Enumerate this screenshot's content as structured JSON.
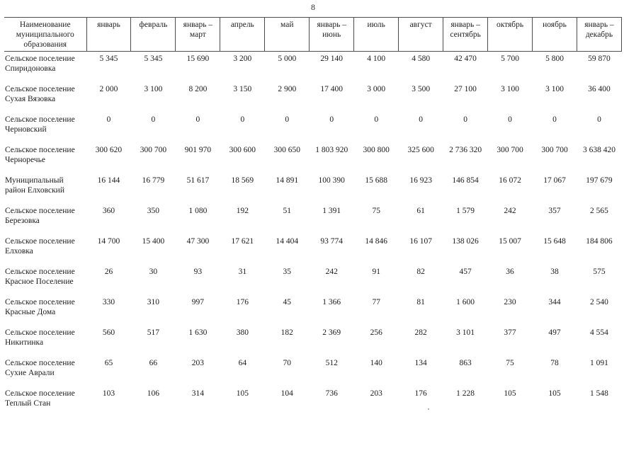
{
  "page_number": "8",
  "table": {
    "header": {
      "name_column": "Наименование муниципального образования",
      "month_columns": [
        "январь",
        "февраль",
        "январь – март",
        "апрель",
        "май",
        "январь – июнь",
        "июль",
        "август",
        "январь – сентябрь",
        "октябрь",
        "ноябрь",
        "январь – декабрь"
      ]
    },
    "rows": [
      {
        "name": "Сельское поселение Спиридоновка",
        "values": [
          "5 345",
          "5 345",
          "15 690",
          "3 200",
          "5 000",
          "29 140",
          "4 100",
          "4 580",
          "42 470",
          "5 700",
          "5 800",
          "59 870"
        ]
      },
      {
        "name": "Сельское поселение Сухая Вязовка",
        "values": [
          "2 000",
          "3 100",
          "8 200",
          "3 150",
          "2 900",
          "17 400",
          "3 000",
          "3 500",
          "27 100",
          "3 100",
          "3 100",
          "36 400"
        ]
      },
      {
        "name": "Сельское поселение Черновский",
        "values": [
          "0",
          "0",
          "0",
          "0",
          "0",
          "0",
          "0",
          "0",
          "0",
          "0",
          "0",
          "0"
        ]
      },
      {
        "name": "Сельское поселение Черноречье",
        "values": [
          "300 620",
          "300 700",
          "901 970",
          "300 600",
          "300 650",
          "1 803 920",
          "300 800",
          "325 600",
          "2 736 320",
          "300 700",
          "300 700",
          "3 638 420"
        ]
      },
      {
        "name": "Муниципальный район Елховский",
        "values": [
          "16 144",
          "16 779",
          "51 617",
          "18 569",
          "14 891",
          "100 390",
          "15 688",
          "16 923",
          "146 854",
          "16 072",
          "17 067",
          "197 679"
        ]
      },
      {
        "name": "Сельское поселение Березовка",
        "values": [
          "360",
          "350",
          "1 080",
          "192",
          "51",
          "1 391",
          "75",
          "61",
          "1 579",
          "242",
          "357",
          "2 565"
        ]
      },
      {
        "name": "Сельское поселение Елховка",
        "values": [
          "14 700",
          "15 400",
          "47 300",
          "17 621",
          "14 404",
          "93 774",
          "14 846",
          "16 107",
          "138 026",
          "15 007",
          "15 648",
          "184 806"
        ]
      },
      {
        "name": "Сельское поселение Красное Поселение",
        "values": [
          "26",
          "30",
          "93",
          "31",
          "35",
          "242",
          "91",
          "82",
          "457",
          "36",
          "38",
          "575"
        ]
      },
      {
        "name": "Сельское поселение Красные Дома",
        "values": [
          "330",
          "310",
          "997",
          "176",
          "45",
          "1 366",
          "77",
          "81",
          "1 600",
          "230",
          "344",
          "2 540"
        ]
      },
      {
        "name": "Сельское поселение Никитинка",
        "values": [
          "560",
          "517",
          "1 630",
          "380",
          "182",
          "2 369",
          "256",
          "282",
          "3 101",
          "377",
          "497",
          "4 554"
        ]
      },
      {
        "name": "Сельское поселение Сухие Аврали",
        "values": [
          "65",
          "66",
          "203",
          "64",
          "70",
          "512",
          "140",
          "134",
          "863",
          "75",
          "78",
          "1 091"
        ]
      },
      {
        "name": "Сельское поселение Теплый Стан",
        "values": [
          "103",
          "106",
          "314",
          "105",
          "104",
          "736",
          "203",
          "176",
          "1 228",
          "105",
          "105",
          "1 548"
        ]
      }
    ]
  }
}
